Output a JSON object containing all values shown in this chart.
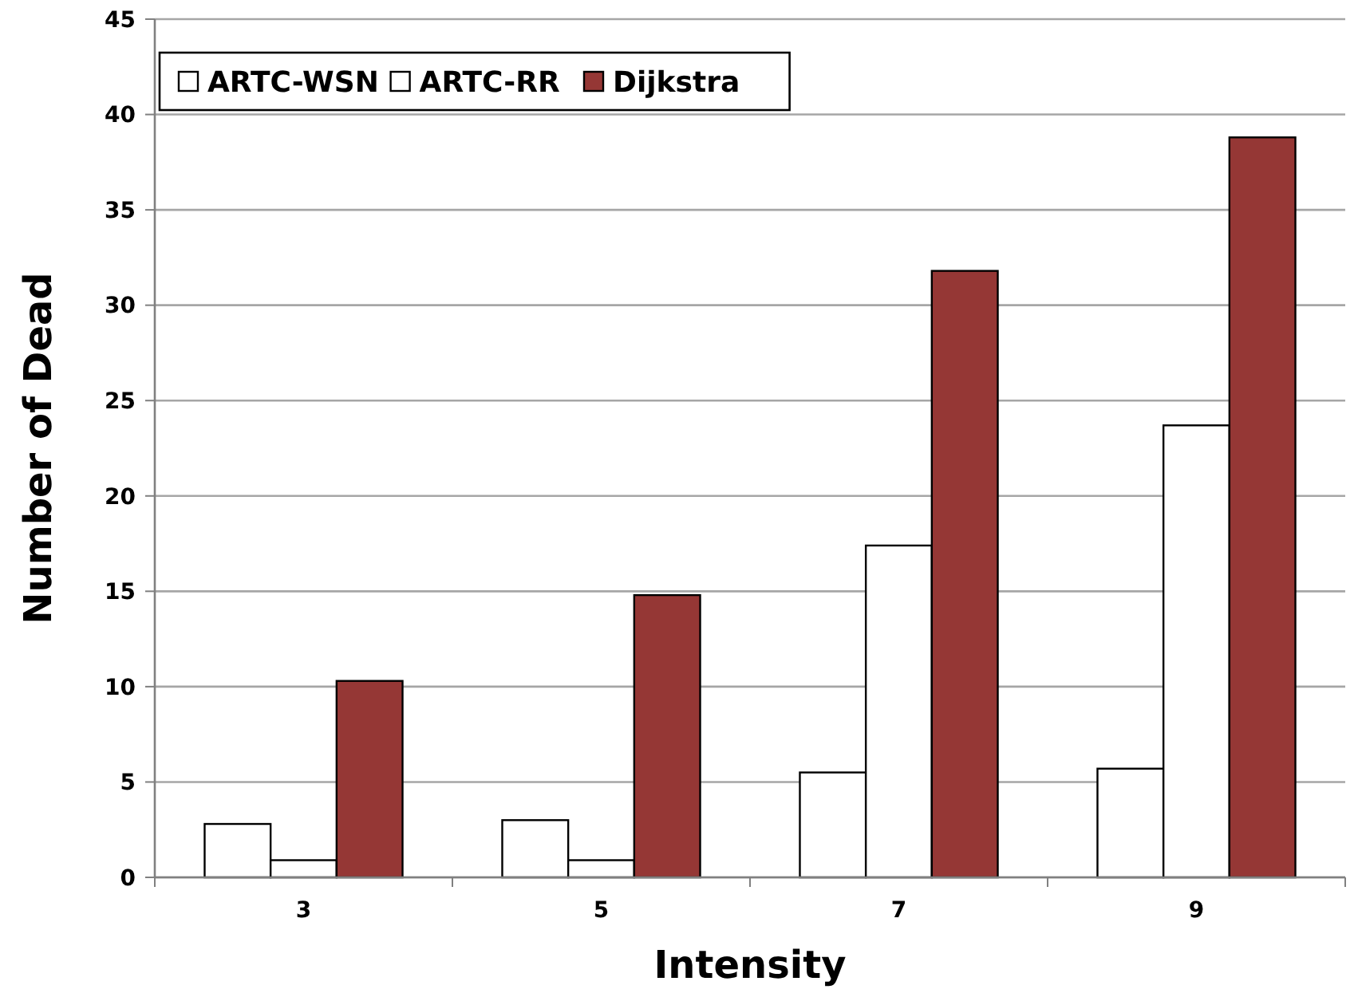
{
  "chart_data": {
    "type": "bar",
    "xlabel": "Intensity",
    "ylabel": "Number of Dead",
    "categories": [
      "3",
      "5",
      "7",
      "9"
    ],
    "series": [
      {
        "name": "ARTC-WSN",
        "color": "#ffffff",
        "values": [
          2.8,
          3.0,
          5.5,
          5.7
        ]
      },
      {
        "name": "ARTC-RR",
        "color": "#ffffff",
        "values": [
          0.9,
          0.9,
          17.4,
          23.7
        ]
      },
      {
        "name": "Dijkstra",
        "color": "#953735",
        "values": [
          10.3,
          14.8,
          31.8,
          38.8
        ]
      }
    ],
    "ylim": [
      0,
      45
    ],
    "yticks": [
      0,
      5,
      10,
      15,
      20,
      25,
      30,
      35,
      40,
      45
    ],
    "grid": "y",
    "legend": "top left"
  }
}
